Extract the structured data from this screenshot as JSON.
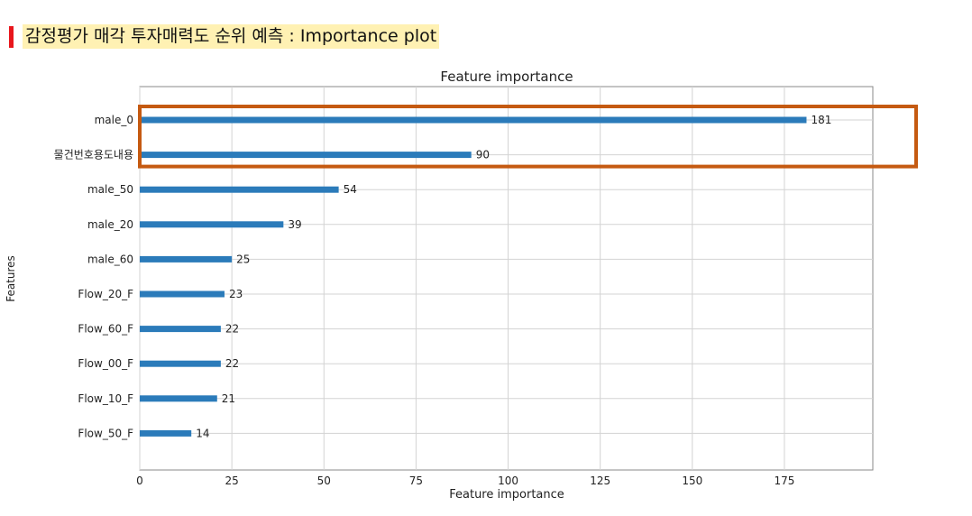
{
  "header": {
    "title": "감정평가 매각 투자매력도 순위 예측 : Importance plot",
    "accent_color": "#e8161c",
    "highlight_color": "#fff1b3"
  },
  "chart_data": {
    "type": "bar",
    "orientation": "horizontal",
    "title": "Feature importance",
    "xlabel": "Feature importance",
    "ylabel": "Features",
    "categories": [
      "male_0",
      "물건번호용도내용",
      "male_50",
      "male_20",
      "male_60",
      "Flow_20_F",
      "Flow_60_F",
      "Flow_00_F",
      "Flow_10_F",
      "Flow_50_F"
    ],
    "values": [
      181,
      90,
      54,
      39,
      25,
      23,
      22,
      22,
      21,
      14
    ],
    "xlim": [
      0,
      199
    ],
    "xticks": [
      0,
      25,
      50,
      75,
      100,
      125,
      150,
      175
    ],
    "grid": true,
    "bar_color": "#2b7bba",
    "highlight_box_color": "#c55a11",
    "highlighted_categories": [
      "male_0",
      "물건번호용도내용"
    ]
  }
}
